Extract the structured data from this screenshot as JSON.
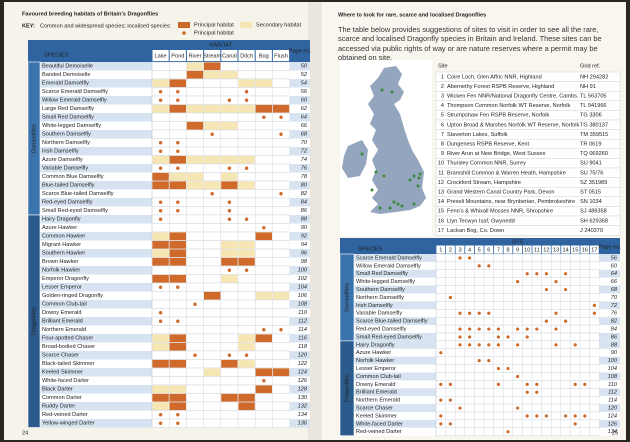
{
  "left": {
    "title": "Favoured breeding habitats of Britain's Dragonflies",
    "key": {
      "label": "KEY:",
      "text": "Common and widespread species; localised species:",
      "principal": "Principal habitat",
      "secondary": "Secondary habitat",
      "principal_dot": "Principal habitat"
    },
    "columns": {
      "species": "SPECIES",
      "habitat": "HABITAT",
      "habitats": [
        "Lake",
        "Pond",
        "River",
        "Stream",
        "Canal",
        "Ditch",
        "Bog",
        "Flush"
      ],
      "page": "Page no."
    },
    "groups": [
      {
        "name": "Damselflies",
        "rows": [
          {
            "species": "Beautiful Demoiselle",
            "page": 50,
            "cells": "..SP...."
          },
          {
            "species": "Banded Demoiselle",
            "page": 52,
            "cells": "..PSS..."
          },
          {
            "species": "Emerald Damselfly",
            "page": 54,
            "cells": "SP...SS."
          },
          {
            "species": "Scarce Emerald Damselfly",
            "page": 56,
            "cells": "oo...o.."
          },
          {
            "species": "Willow Emerald Damselfly",
            "page": 60,
            "cells": "oo..oo.."
          },
          {
            "species": "Large Red Damselfly",
            "page": 62,
            "cells": "SPSSSSPP"
          },
          {
            "species": "Small Red Damselfly",
            "page": 64,
            "cells": "......oo"
          },
          {
            "species": "White-legged Damselfly",
            "page": 66,
            "cells": "..PSS..."
          },
          {
            "species": "Southern Damselfly",
            "page": 68,
            "cells": "...o...o"
          },
          {
            "species": "Northern Damselfly",
            "page": 70,
            "cells": "oo......"
          },
          {
            "species": "Irish Damselfly",
            "page": 72,
            "cells": "oo......"
          },
          {
            "species": "Azure Damselfly",
            "page": 74,
            "cells": "SPSSSS.."
          },
          {
            "species": "Variable Damselfly",
            "page": 76,
            "cells": "oo..oo.."
          },
          {
            "species": "Common Blue Damselfly",
            "page": 78,
            "cells": "PSS.S..."
          },
          {
            "species": "Blue-tailed Damselfly",
            "page": 80,
            "cells": "PPSSPS.."
          },
          {
            "species": "Scarce Blue-tailed Damselfly",
            "page": 82,
            "cells": "...o...o"
          },
          {
            "species": "Red-eyed Damselfly",
            "page": 84,
            "cells": "oo..o..."
          },
          {
            "species": "Small Red-eyed Damselfly",
            "page": 86,
            "cells": "oo..o..."
          }
        ]
      },
      {
        "name": "Dragonflies",
        "rows": [
          {
            "species": "Hairy Dragonfly",
            "page": 88,
            "cells": "o...oo.."
          },
          {
            "species": "Azure Hawker",
            "page": 90,
            "cells": "......o."
          },
          {
            "species": "Common Hawker",
            "page": 92,
            "cells": "SP....P."
          },
          {
            "species": "Migrant Hawker",
            "page": 94,
            "cells": "PP..SS.."
          },
          {
            "species": "Southern Hawker",
            "page": 96,
            "cells": "SP..SS.."
          },
          {
            "species": "Brown Hawker",
            "page": 98,
            "cells": "PP..PP.."
          },
          {
            "species": "Norfolk Hawker",
            "page": 100,
            "cells": "....oo.."
          },
          {
            "species": "Emperor Dragonfly",
            "page": 102,
            "cells": "PP..S..."
          },
          {
            "species": "Lesser Emperor",
            "page": 104,
            "cells": "oo......"
          },
          {
            "species": "Golden-ringed Dragonfly",
            "page": 106,
            "cells": "...P..SS"
          },
          {
            "species": "Common Club-tail",
            "page": 108,
            "cells": "..o....."
          },
          {
            "species": "Downy Emerald",
            "page": 110,
            "cells": "o......."
          },
          {
            "species": "Brilliant Emerald",
            "page": 112,
            "cells": "oo......"
          },
          {
            "species": "Northern Emerald",
            "page": 114,
            "cells": "......oo"
          },
          {
            "species": "Four-spotted Chaser",
            "page": 116,
            "cells": "SP...SP."
          },
          {
            "species": "Broad-bodied Chaser",
            "page": 118,
            "cells": "SP...S.."
          },
          {
            "species": "Scarce Chaser",
            "page": 120,
            "cells": "..o.oo.."
          },
          {
            "species": "Black-tailed Skimmer",
            "page": 122,
            "cells": "PP..PS.."
          },
          {
            "species": "Keeled Skimmer",
            "page": 124,
            "cells": "...S..PP"
          },
          {
            "species": "White-faced Darter",
            "page": 126,
            "cells": "......o."
          },
          {
            "species": "Black Darter",
            "page": 128,
            "cells": "SS....P."
          },
          {
            "species": "Common Darter",
            "page": 130,
            "cells": "PP..PP.."
          },
          {
            "species": "Ruddy Darter",
            "page": 132,
            "cells": "SP...P.."
          },
          {
            "species": "Red-veined Darter",
            "page": 134,
            "cells": "oo......"
          },
          {
            "species": "Yellow-winged Darter",
            "page": 136,
            "cells": "oo......"
          }
        ]
      }
    ],
    "page_number": "24"
  },
  "right": {
    "title": "Where to look for rare, scarce and localised Dragonflies",
    "paragraph": "The table below provides suggestions of sites to visit in order to see all the rare, scarce and localised Dragonfly species in Britain and Ireland. These sites can be accessed via public rights of way or are nature reserves where a permit may be obtained on site.",
    "sites_header": {
      "site": "Site",
      "grid": "Grid ref."
    },
    "sites": [
      {
        "n": 1,
        "name": "Coire Loch, Glen Affric NNR, Highland",
        "grid": "NH 294282"
      },
      {
        "n": 2,
        "name": "Abernethy Forest RSPB Reserve, Highland",
        "grid": "NH 91"
      },
      {
        "n": 3,
        "name": "Wicken Fen NNR/National Dragonfly Centre, Cambs.",
        "grid": "TL 563705"
      },
      {
        "n": 4,
        "name": "Thompson Common Norfolk WT Reserve, Norfolk",
        "grid": "TL 941966"
      },
      {
        "n": 5,
        "name": "Strumpshaw Fen RSPB Reserve, Norfolk",
        "grid": "TG 3306"
      },
      {
        "n": 6,
        "name": "Upton Broad & Marshes Norfolk WT Reserve, Norfolk",
        "grid": "TG 380137"
      },
      {
        "n": 7,
        "name": "Staverton Lakes, Suffolk",
        "grid": "TM 359515"
      },
      {
        "n": 8,
        "name": "Dungeness RSPB Reserve, Kent",
        "grid": "TR 0619"
      },
      {
        "n": 9,
        "name": "River Arun at New Bridge, West Sussex",
        "grid": "TQ 069260"
      },
      {
        "n": 10,
        "name": "Thursley Common NNR, Surrey",
        "grid": "SU 9041"
      },
      {
        "n": 11,
        "name": "Bramshill Common & Warren Heath, Hampshire",
        "grid": "SU 75/76"
      },
      {
        "n": 12,
        "name": "Crockford Stream, Hampshire",
        "grid": "SZ 351989"
      },
      {
        "n": 13,
        "name": "Grand Western Canal Country Park, Devon",
        "grid": "ST 0515"
      },
      {
        "n": 14,
        "name": "Preseli Mountains, near Brynberian, Pembrokeshire",
        "grid": "SN 1034"
      },
      {
        "n": 15,
        "name": "Fenn's & Whixall Mosses NNR, Shropshire",
        "grid": "SJ 489358"
      },
      {
        "n": 16,
        "name": "Llyn Tecwyn Isaf, Gwynedd",
        "grid": "SH 629368"
      },
      {
        "n": 17,
        "name": "Lackan Bog, Co. Down",
        "grid": "J 240370"
      }
    ],
    "table": {
      "species": "SPECIES",
      "site": "SITE",
      "site_numbers": [
        1,
        2,
        3,
        4,
        5,
        6,
        7,
        8,
        9,
        10,
        11,
        12,
        13,
        14,
        15,
        16,
        17
      ],
      "page": "Page no.",
      "groups": [
        {
          "name": "Damselflies",
          "rows": [
            {
              "species": "Scarce Emerald Damselfly",
              "page": 56,
              "sites": [
                3,
                4
              ]
            },
            {
              "species": "Willow Emerald Damselfly",
              "page": 60,
              "sites": [
                5,
                6
              ]
            },
            {
              "species": "Small Red Damselfly",
              "page": 64,
              "sites": [
                10,
                11,
                12,
                14
              ]
            },
            {
              "species": "White-legged Damselfly",
              "page": 66,
              "sites": [
                9,
                13
              ]
            },
            {
              "species": "Southern Damselfly",
              "page": 68,
              "sites": [
                12,
                14
              ]
            },
            {
              "species": "Northern Damselfly",
              "page": 70,
              "sites": [
                2
              ]
            },
            {
              "species": "Irish Damselfly",
              "page": 72,
              "sites": [
                17
              ]
            },
            {
              "species": "Variable Damselfly",
              "page": 76,
              "sites": [
                3,
                4,
                5,
                6,
                13,
                17
              ]
            },
            {
              "species": "Scarce Blue-tailed Damselfly",
              "page": 82,
              "sites": [
                12,
                14
              ]
            },
            {
              "species": "Red-eyed Damselfly",
              "page": 84,
              "sites": [
                3,
                4,
                5,
                6,
                7,
                9,
                10,
                11,
                13
              ]
            },
            {
              "species": "Small Red-eyed Damselfly",
              "page": 86,
              "sites": [
                3,
                4,
                7,
                8,
                10
              ]
            }
          ]
        },
        {
          "name": "Dragonflies",
          "rows": [
            {
              "species": "Hairy Dragonfly",
              "page": 88,
              "sites": [
                3,
                4,
                5,
                6,
                7,
                9,
                13,
                15
              ]
            },
            {
              "species": "Azure Hawker",
              "page": 90,
              "sites": [
                1
              ]
            },
            {
              "species": "Norfolk Hawker",
              "page": 100,
              "sites": [
                5,
                6
              ]
            },
            {
              "species": "Lesser Emperor",
              "page": 104,
              "sites": [
                7,
                8
              ]
            },
            {
              "species": "Common Club-tail",
              "page": 108,
              "sites": [
                9
              ]
            },
            {
              "species": "Downy Emerald",
              "page": 110,
              "sites": [
                1,
                2,
                7,
                10,
                11,
                15,
                16
              ]
            },
            {
              "species": "Brilliant Emerald",
              "page": 112,
              "sites": [
                10,
                11
              ]
            },
            {
              "species": "Northern Emerald",
              "page": 114,
              "sites": [
                1,
                2
              ]
            },
            {
              "species": "Scarce Chaser",
              "page": 120,
              "sites": [
                3,
                9
              ]
            },
            {
              "species": "Keeled Skimmer",
              "page": 124,
              "sites": [
                1,
                10,
                11,
                12,
                14,
                15,
                16
              ]
            },
            {
              "species": "White-faced Darter",
              "page": 126,
              "sites": [
                1,
                2,
                15
              ]
            },
            {
              "species": "Red-veined Darter",
              "page": 134,
              "sites": [
                8
              ]
            }
          ]
        }
      ]
    },
    "page_number": "25"
  }
}
